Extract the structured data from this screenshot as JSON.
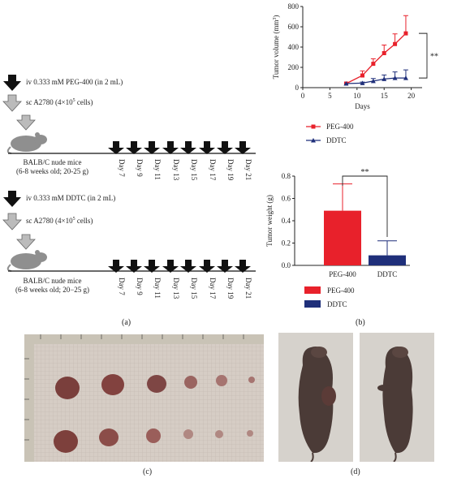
{
  "panel_labels": {
    "a": "(a)",
    "b": "(b)",
    "c": "(c)",
    "d": "(d)"
  },
  "protocol": {
    "group1": {
      "step1": "iv 0.333 mM PEG-400 (in 2 mL)",
      "step2": "sc A2780 (4×10",
      "step2_sup": "5",
      "step2_end": " cells)",
      "mice_line1": "BALB/C nude mice",
      "mice_line2": "(6-8 weeks old; 20-25 g)"
    },
    "group2": {
      "step1": "iv 0.333 mM DDTC (in 2 mL)",
      "step2": "sc A2780 (4×10",
      "step2_sup": "5",
      "step2_end": " cells)",
      "mice_line1": "BALB/C nude mice",
      "mice_line2": "(6-8 weeks old; 20−25 g)"
    },
    "days": [
      "Day 7",
      "Day 9",
      "Day 11",
      "Day 13",
      "Day 15",
      "Day 17",
      "Day 19",
      "Day 21"
    ]
  },
  "chart_data": [
    {
      "type": "line",
      "ylabel": "Tumor volume (mm",
      "ylabel_sup": "3",
      "ylabel_end": ")",
      "xlabel": "Days",
      "xlim": [
        0,
        22
      ],
      "ylim": [
        0,
        800
      ],
      "xticks": [
        "0",
        "5",
        "10",
        "15",
        "20"
      ],
      "yticks": [
        "0",
        "200",
        "400",
        "600",
        "800"
      ],
      "significance": "**",
      "legend_position": "bottom",
      "series": [
        {
          "name": "PEG-400",
          "color": "#e8212b",
          "marker": "square",
          "x": [
            8,
            11,
            13,
            15,
            17,
            19
          ],
          "y": [
            40,
            120,
            235,
            340,
            430,
            535
          ],
          "err": [
            0,
            45,
            50,
            80,
            100,
            175
          ]
        },
        {
          "name": "DDTC",
          "color": "#1f2f7a",
          "marker": "triangle",
          "x": [
            8,
            11,
            13,
            15,
            17,
            19
          ],
          "y": [
            40,
            45,
            65,
            85,
            95,
            95
          ],
          "err": [
            0,
            10,
            25,
            40,
            60,
            80
          ]
        }
      ]
    },
    {
      "type": "bar",
      "ylabel": "Tumor weight (g)",
      "ylim": [
        0,
        0.8
      ],
      "yticks": [
        "0.0",
        "0.2",
        "0.4",
        "0.6",
        "0.8"
      ],
      "categories": [
        "PEG-400",
        "DDTC"
      ],
      "values": [
        0.49,
        0.09
      ],
      "err": [
        0.24,
        0.13
      ],
      "colors": [
        "#e8212b",
        "#1f2f7a"
      ],
      "significance": "**",
      "legend_position": "bottom",
      "series_names": [
        "PEG-400",
        "DDTC"
      ]
    }
  ]
}
